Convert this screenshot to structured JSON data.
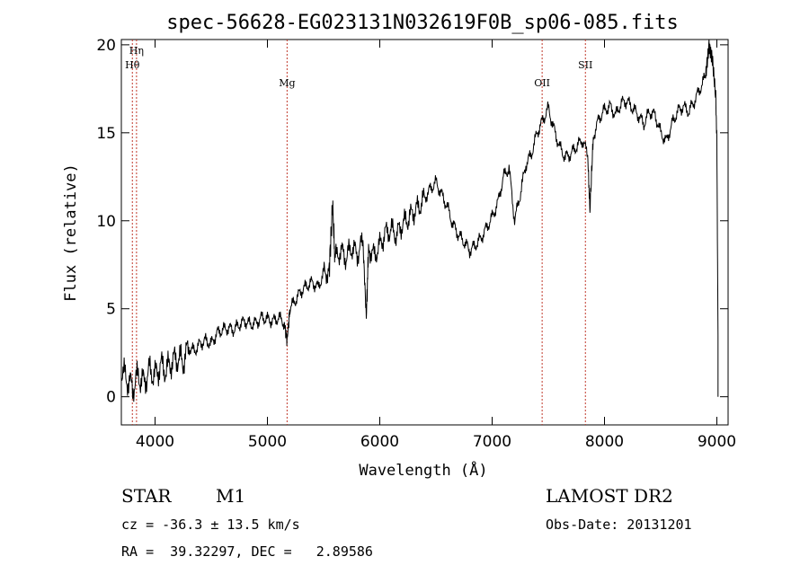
{
  "chart_data": {
    "type": "line",
    "title": "spec-56628-EG023131N032619F0B_sp06-085.fits",
    "xlabel": "Wavelength (Å)",
    "ylabel": "Flux (relative)",
    "xlim": [
      3700,
      9100
    ],
    "ylim": [
      -1.6,
      20.3
    ],
    "xticks": [
      4000,
      5000,
      6000,
      7000,
      8000,
      9000
    ],
    "yticks": [
      0,
      5,
      10,
      15,
      20
    ],
    "grid": false,
    "series": [
      {
        "x": [
          3700,
          3750,
          3800,
          3850,
          3900,
          3950,
          4000,
          4050,
          4100,
          4150,
          4200,
          4250,
          4300,
          4350,
          4400,
          4450,
          4500,
          4550,
          4600,
          4650,
          4700,
          4750,
          4800,
          4850,
          4900,
          4950,
          5000,
          5050,
          5100,
          5150,
          5175,
          5200,
          5250,
          5300,
          5350,
          5400,
          5450,
          5500,
          5550,
          5580,
          5600,
          5650,
          5700,
          5750,
          5800,
          5850,
          5880,
          5900,
          5950,
          6000,
          6050,
          6100,
          6150,
          6200,
          6250,
          6300,
          6350,
          6400,
          6450,
          6500,
          6550,
          6600,
          6650,
          6700,
          6750,
          6800,
          6850,
          6900,
          6950,
          7000,
          7050,
          7100,
          7150,
          7200,
          7250,
          7300,
          7350,
          7400,
          7450,
          7500,
          7550,
          7600,
          7650,
          7700,
          7750,
          7800,
          7850,
          7870,
          7900,
          7950,
          8000,
          8050,
          8100,
          8150,
          8200,
          8250,
          8300,
          8350,
          8400,
          8450,
          8500,
          8550,
          8600,
          8650,
          8700,
          8750,
          8800,
          8850,
          8900,
          8930,
          8960,
          8990,
          9000,
          9010
        ],
        "y": [
          1.5,
          1.0,
          0.5,
          1.2,
          0.8,
          1.5,
          1.2,
          1.8,
          1.5,
          2.0,
          2.2,
          2.0,
          2.8,
          2.6,
          3.0,
          3.2,
          3.0,
          3.6,
          3.8,
          3.9,
          3.8,
          4.1,
          4.3,
          4.1,
          4.2,
          4.5,
          4.4,
          4.3,
          4.5,
          4.2,
          3.2,
          5.0,
          5.5,
          6.0,
          6.3,
          6.5,
          6.2,
          7.0,
          7.2,
          11.0,
          7.8,
          8.3,
          7.9,
          8.5,
          8.1,
          8.8,
          4.5,
          8.5,
          8.0,
          8.6,
          9.3,
          9.5,
          9.2,
          9.8,
          10.1,
          10.5,
          10.8,
          11.3,
          11.8,
          12.2,
          11.5,
          10.8,
          9.8,
          9.2,
          8.8,
          8.3,
          8.6,
          9.0,
          9.6,
          10.2,
          11.0,
          12.5,
          13.0,
          10.0,
          11.5,
          13.2,
          13.8,
          15.0,
          15.7,
          16.4,
          15.2,
          14.2,
          13.6,
          13.8,
          14.2,
          14.6,
          13.8,
          10.6,
          14.8,
          15.8,
          16.3,
          16.5,
          16.0,
          16.7,
          16.8,
          16.4,
          16.0,
          15.5,
          16.2,
          16.0,
          15.0,
          14.5,
          15.5,
          16.2,
          16.5,
          16.2,
          16.8,
          17.5,
          18.2,
          20.0,
          19.2,
          17.0,
          14.5,
          3.5
        ]
      }
    ],
    "lines": [
      {
        "label": "Hη",
        "x": 3835,
        "labelRow": 0
      },
      {
        "label": "Hθ",
        "x": 3798,
        "labelRow": 1
      },
      {
        "label": "Mg",
        "x": 5175,
        "labelRow": 2
      },
      {
        "label": "OII",
        "x": 7445,
        "labelRow": 2
      },
      {
        "label": "SII",
        "x": 7830,
        "labelRow": 1
      }
    ]
  },
  "info": {
    "class_label": "STAR",
    "subclass": "M1",
    "survey": "LAMOST DR2",
    "cz": "cz = -36.3 ± 13.5 km/s",
    "obs_date": "Obs-Date: 20131201",
    "radec": "RA =  39.32297, DEC =   2.89586"
  }
}
